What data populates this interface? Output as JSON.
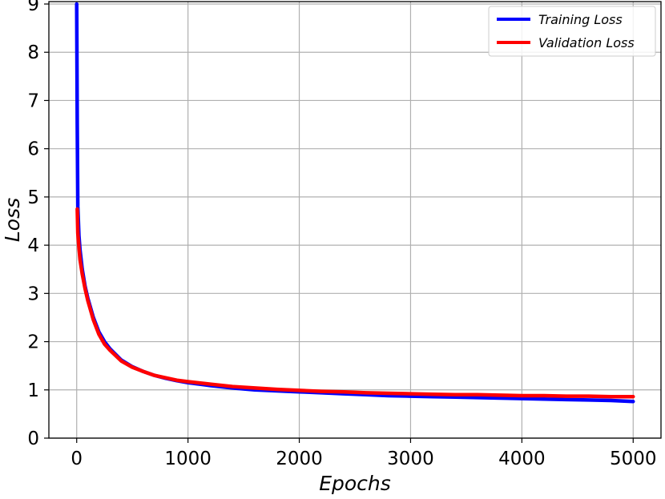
{
  "chart_data": {
    "type": "line",
    "title": "",
    "xlabel": "Epochs",
    "ylabel": "Loss",
    "xlim": [
      -250,
      5250
    ],
    "ylim": [
      0,
      9.05
    ],
    "xticks": [
      0,
      1000,
      2000,
      3000,
      4000,
      5000
    ],
    "xtick_labels": [
      "0",
      "1000",
      "2000",
      "3000",
      "4000",
      "5000"
    ],
    "yticks": [
      0,
      1,
      2,
      3,
      4,
      5,
      6,
      7,
      8,
      9
    ],
    "ytick_labels": [
      "0",
      "1",
      "2",
      "3",
      "4",
      "5",
      "6",
      "7",
      "8",
      "9"
    ],
    "grid": true,
    "legend_position": "top-right",
    "series": [
      {
        "name": "Training Loss",
        "color": "#0000ff",
        "x": [
          0,
          5,
          10,
          20,
          30,
          50,
          75,
          100,
          150,
          200,
          250,
          300,
          400,
          500,
          600,
          700,
          800,
          900,
          1000,
          1200,
          1400,
          1600,
          1800,
          2000,
          2200,
          2400,
          2600,
          2800,
          3000,
          3200,
          3400,
          3600,
          3800,
          4000,
          4200,
          4400,
          4600,
          4800,
          5000
        ],
        "y": [
          9.0,
          6.5,
          4.8,
          4.2,
          3.9,
          3.5,
          3.15,
          2.9,
          2.5,
          2.2,
          2.0,
          1.85,
          1.62,
          1.48,
          1.38,
          1.3,
          1.24,
          1.19,
          1.15,
          1.09,
          1.04,
          1.0,
          0.98,
          0.96,
          0.94,
          0.92,
          0.9,
          0.88,
          0.87,
          0.86,
          0.85,
          0.84,
          0.83,
          0.82,
          0.81,
          0.8,
          0.79,
          0.78,
          0.76
        ]
      },
      {
        "name": "Validation Loss",
        "color": "#ff0000",
        "x": [
          5,
          10,
          20,
          30,
          50,
          75,
          100,
          150,
          200,
          250,
          300,
          400,
          500,
          600,
          700,
          800,
          900,
          1000,
          1200,
          1400,
          1600,
          1800,
          2000,
          2200,
          2400,
          2600,
          2800,
          3000,
          3200,
          3400,
          3600,
          3800,
          4000,
          4200,
          4400,
          4600,
          4800,
          5000
        ],
        "y": [
          4.75,
          4.25,
          3.95,
          3.7,
          3.4,
          3.1,
          2.85,
          2.45,
          2.15,
          1.95,
          1.82,
          1.6,
          1.47,
          1.38,
          1.3,
          1.25,
          1.2,
          1.17,
          1.12,
          1.07,
          1.04,
          1.01,
          0.99,
          0.97,
          0.96,
          0.94,
          0.93,
          0.92,
          0.91,
          0.9,
          0.9,
          0.89,
          0.88,
          0.88,
          0.87,
          0.87,
          0.86,
          0.86
        ]
      }
    ]
  }
}
